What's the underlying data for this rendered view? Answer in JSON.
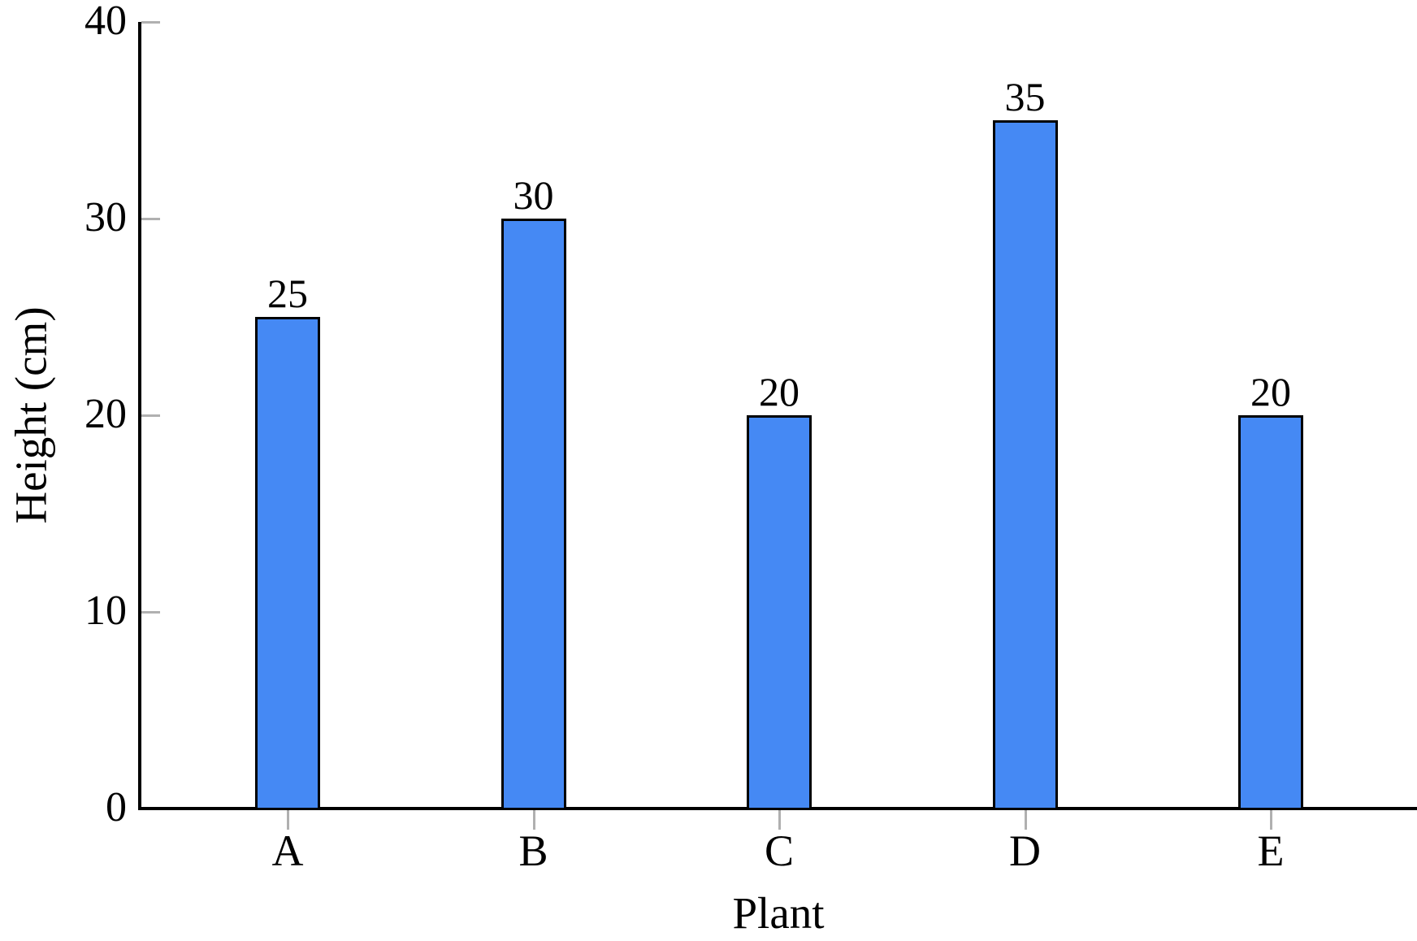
{
  "chart_data": {
    "type": "bar",
    "title": "",
    "xlabel": "Plant",
    "ylabel": "Height (cm)",
    "categories": [
      "A",
      "B",
      "C",
      "D",
      "E"
    ],
    "values": [
      25,
      30,
      20,
      35,
      20
    ],
    "bar_labels": [
      "25",
      "30",
      "20",
      "35",
      "20"
    ],
    "ylim": [
      0,
      40
    ],
    "yticks": [
      0,
      10,
      20,
      30,
      40
    ],
    "grid": false,
    "legend_position": "none",
    "layout_hints": "single series, vertical bars, value labels above bars, left and bottom axes only",
    "colors": {
      "bar_fill": "#4589f4",
      "bar_border": "#000000",
      "axis": "#000000",
      "tick": "#b0b0b0",
      "text": "#000000",
      "background": "#ffffff"
    }
  }
}
